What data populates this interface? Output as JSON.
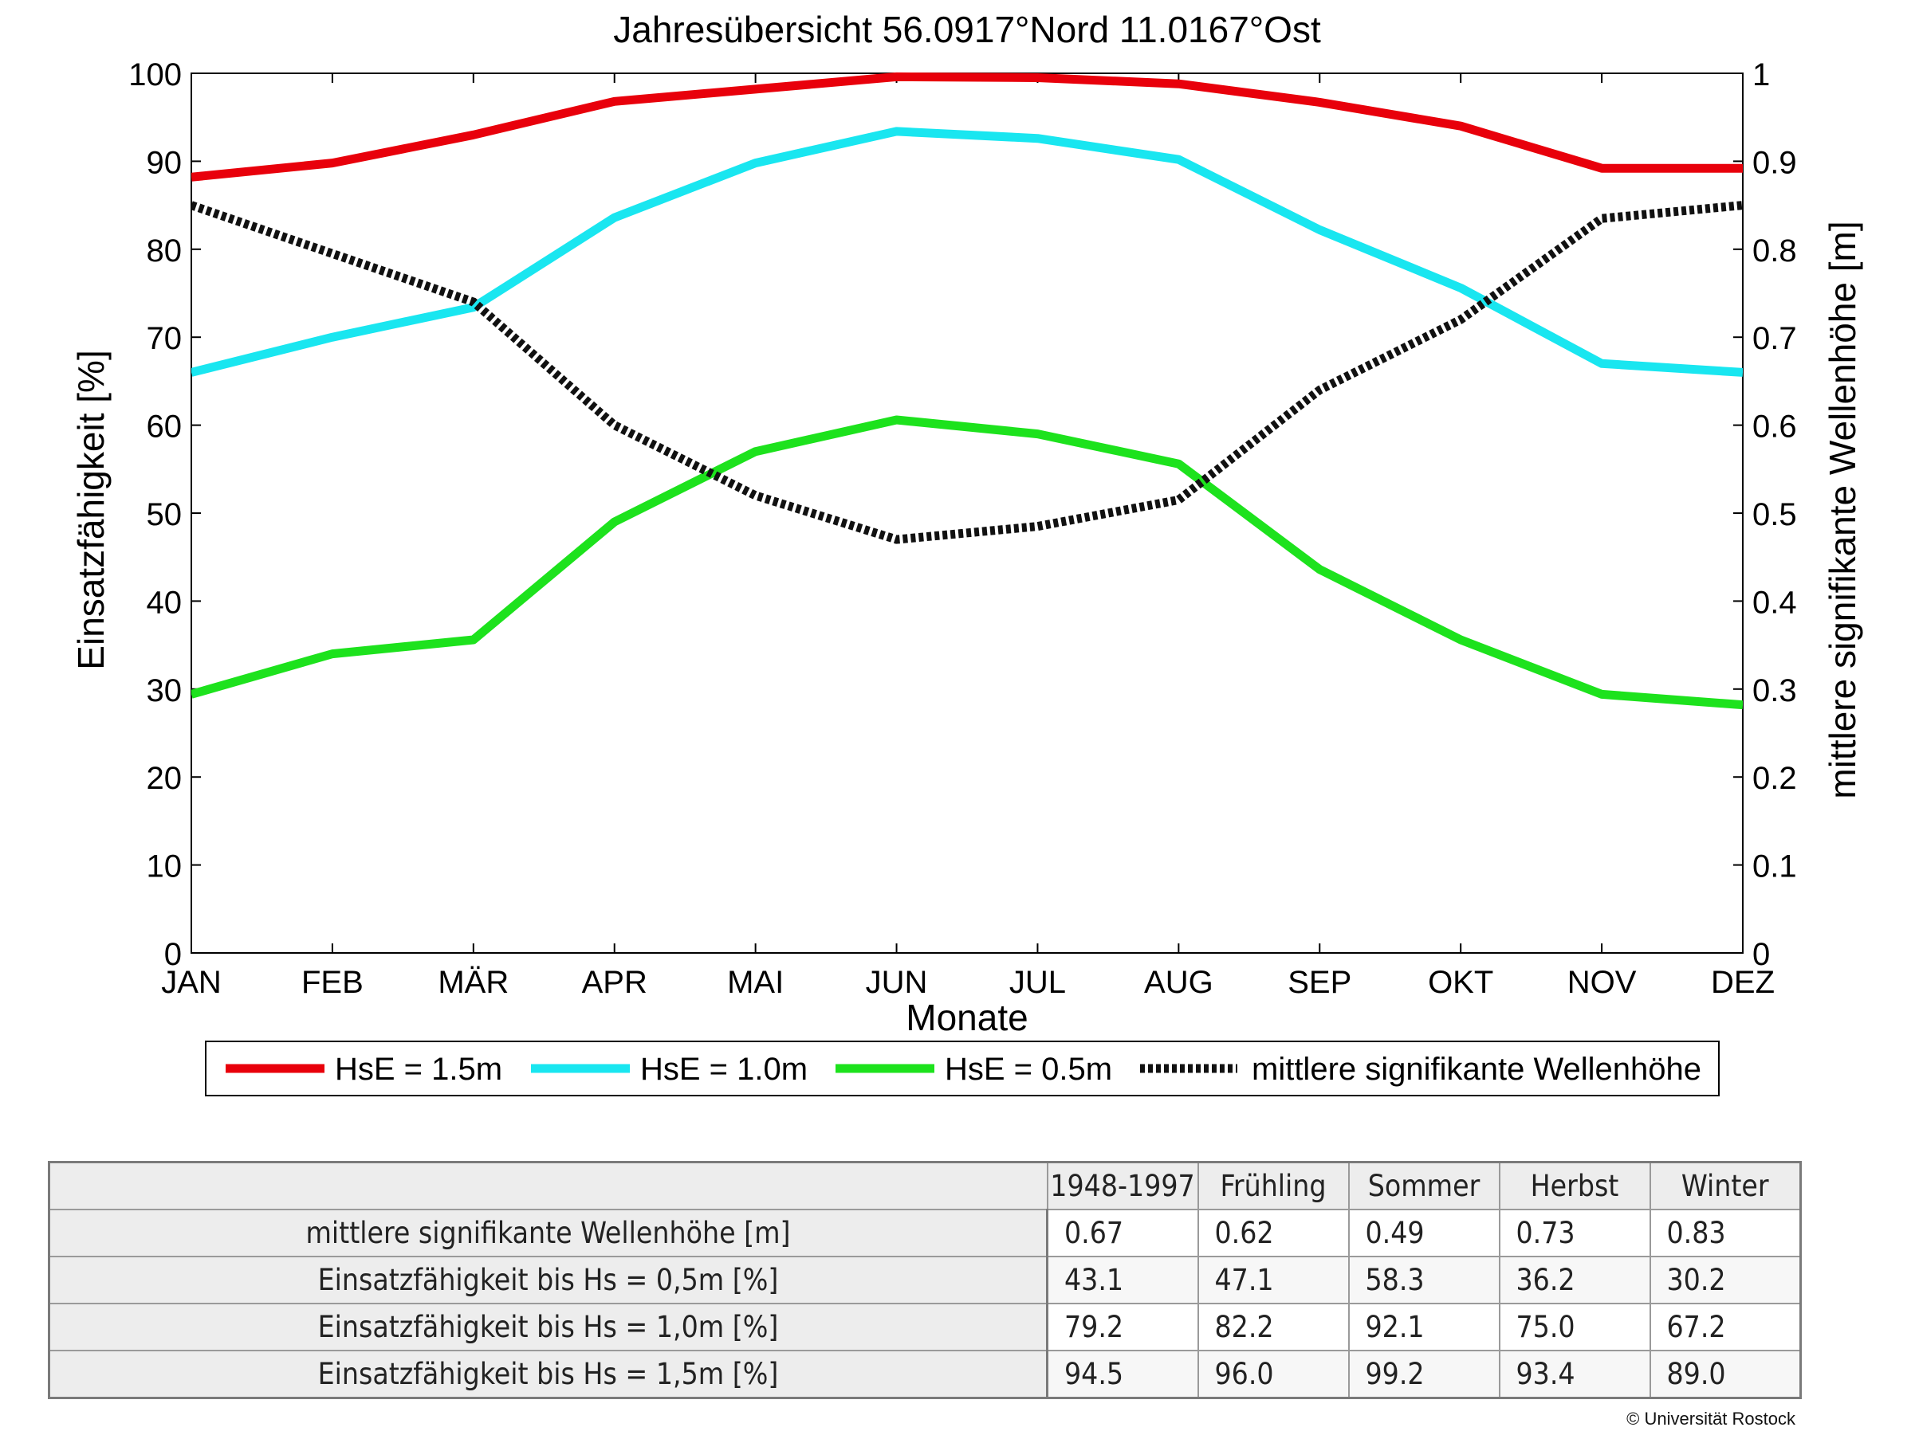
{
  "chart_data": {
    "type": "line",
    "title": "Jahresübersicht  56.0917°Nord  11.0167°Ost",
    "xlabel": "Monate",
    "ylabel": "Einsatzfähigkeit [%]",
    "y2label": "mittlere signifikante Wellenhöhe [m]",
    "categories": [
      "JAN",
      "FEB",
      "MÄR",
      "APR",
      "MAI",
      "JUN",
      "JUL",
      "AUG",
      "SEP",
      "OKT",
      "NOV",
      "DEZ"
    ],
    "ylim": [
      0,
      100
    ],
    "yticks": [
      0,
      10,
      20,
      30,
      40,
      50,
      60,
      70,
      80,
      90,
      100
    ],
    "y2lim": [
      0,
      1
    ],
    "y2ticks": [
      "0",
      "0.1",
      "0.2",
      "0.3",
      "0.4",
      "0.5",
      "0.6",
      "0.7",
      "0.8",
      "0.9",
      "1"
    ],
    "grid": false,
    "legend_position": "bottom",
    "series": [
      {
        "name": "HsE = 1.5m",
        "axis": "left",
        "color": "#e8000b",
        "style": "solid",
        "values": [
          88.2,
          89.8,
          93.0,
          96.8,
          98.2,
          99.6,
          99.5,
          98.8,
          96.7,
          94.0,
          89.2,
          89.2
        ]
      },
      {
        "name": "HsE = 1.0m",
        "axis": "left",
        "color": "#19e6f0",
        "style": "solid",
        "values": [
          66.0,
          70.0,
          73.4,
          83.6,
          89.8,
          93.4,
          92.6,
          90.2,
          82.2,
          75.6,
          67.0,
          66.0
        ]
      },
      {
        "name": "HsE = 0.5m",
        "axis": "left",
        "color": "#1de21d",
        "style": "solid",
        "values": [
          29.4,
          34.0,
          35.6,
          49.0,
          57.0,
          60.6,
          59.0,
          55.6,
          43.6,
          35.6,
          29.4,
          28.2
        ]
      },
      {
        "name": "mittlere signifikante Wellenhöhe",
        "axis": "right",
        "color": "#111111",
        "style": "dotted",
        "values": [
          0.85,
          0.795,
          0.74,
          0.6,
          0.52,
          0.47,
          0.485,
          0.515,
          0.64,
          0.72,
          0.835,
          0.85
        ]
      }
    ]
  },
  "table": {
    "headers": [
      "1948-1997",
      "Frühling",
      "Sommer",
      "Herbst",
      "Winter"
    ],
    "rows": [
      {
        "label": "mittlere signifikante Wellenhöhe [m]",
        "values": [
          "0.67",
          "0.62",
          "0.49",
          "0.73",
          "0.83"
        ]
      },
      {
        "label": "Einsatzfähigkeit bis Hs = 0,5m [%]",
        "values": [
          "43.1",
          "47.1",
          "58.3",
          "36.2",
          "30.2"
        ]
      },
      {
        "label": "Einsatzfähigkeit bis Hs = 1,0m [%]",
        "values": [
          "79.2",
          "82.2",
          "92.1",
          "75.0",
          "67.2"
        ]
      },
      {
        "label": "Einsatzfähigkeit bis Hs = 1,5m [%]",
        "values": [
          "94.5",
          "96.0",
          "99.2",
          "93.4",
          "89.0"
        ]
      }
    ]
  },
  "copyright": "© Universität Rostock"
}
